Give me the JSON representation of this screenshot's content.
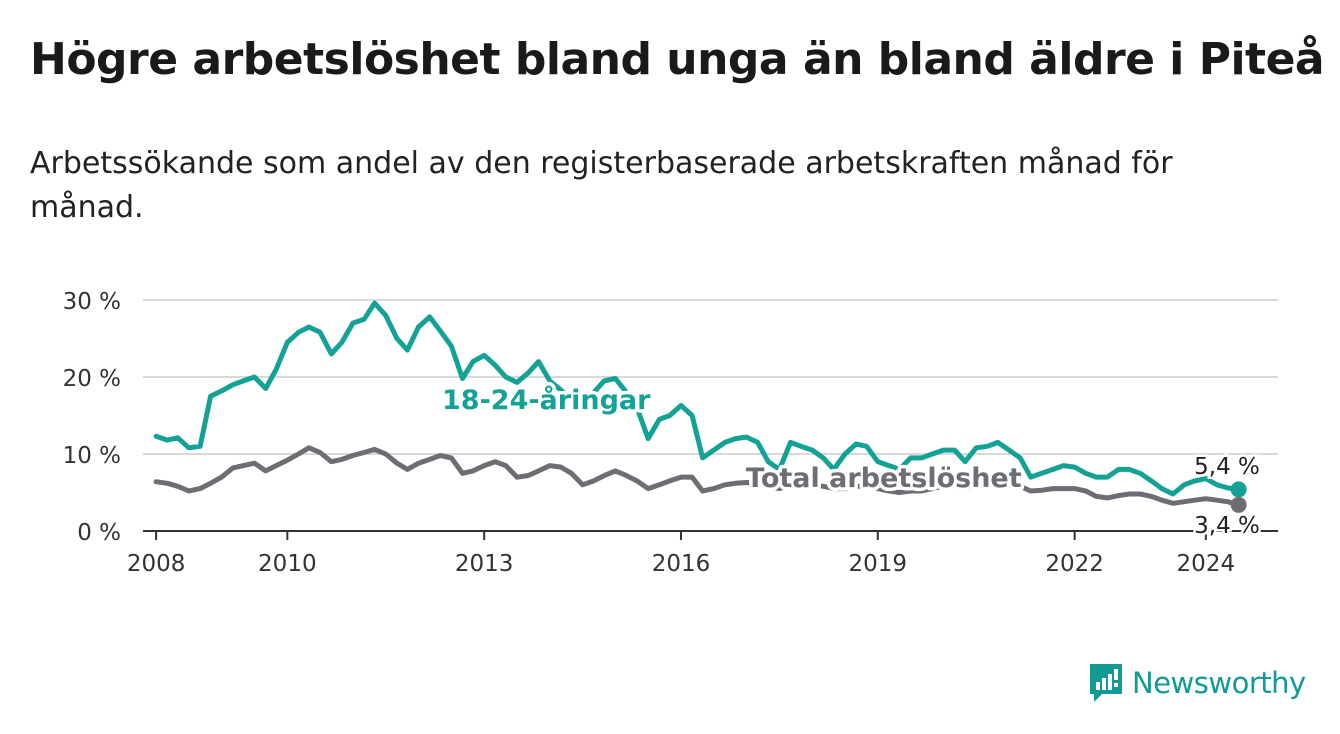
{
  "title": "Högre arbetslöshet bland unga än bland äldre i Piteå",
  "subtitle": "Arbetssökande som andel av den registerbaserade arbetskraften månad för månad.",
  "brand": "Newsworthy",
  "colors": {
    "youth": "#14a296",
    "total": "#6d6d74",
    "grid": "#d9d9d9",
    "axis": "#333333",
    "brand": "#129a94"
  },
  "chart_data": {
    "type": "line",
    "ylim": [
      0,
      30
    ],
    "xlim": [
      2007.8,
      2025.1
    ],
    "y_ticks": [
      0,
      10,
      20,
      30
    ],
    "y_tick_labels": [
      "0 %",
      "10 %",
      "20 %",
      "30 %"
    ],
    "x_ticks": [
      2008,
      2010,
      2013,
      2016,
      2019,
      2022,
      2024
    ],
    "x_tick_labels": [
      "2008",
      "2010",
      "2013",
      "2016",
      "2019",
      "2022",
      "2024"
    ],
    "grid": true,
    "series": [
      {
        "name": "18-24-åringar",
        "end_label": "5,4 %",
        "x": [
          2008.0,
          2008.17,
          2008.33,
          2008.5,
          2008.67,
          2008.83,
          2009.0,
          2009.17,
          2009.33,
          2009.5,
          2009.67,
          2009.83,
          2010.0,
          2010.17,
          2010.33,
          2010.5,
          2010.67,
          2010.83,
          2011.0,
          2011.17,
          2011.33,
          2011.5,
          2011.67,
          2011.83,
          2012.0,
          2012.17,
          2012.33,
          2012.5,
          2012.67,
          2012.83,
          2013.0,
          2013.17,
          2013.33,
          2013.5,
          2013.67,
          2013.83,
          2014.0,
          2014.17,
          2014.33,
          2014.5,
          2014.67,
          2014.83,
          2015.0,
          2015.17,
          2015.33,
          2015.5,
          2015.67,
          2015.83,
          2016.0,
          2016.17,
          2016.33,
          2016.5,
          2016.67,
          2016.83,
          2017.0,
          2017.17,
          2017.33,
          2017.5,
          2017.67,
          2017.83,
          2018.0,
          2018.17,
          2018.33,
          2018.5,
          2018.67,
          2018.83,
          2019.0,
          2019.17,
          2019.33,
          2019.5,
          2019.67,
          2019.83,
          2020.0,
          2020.17,
          2020.33,
          2020.5,
          2020.67,
          2020.83,
          2021.0,
          2021.17,
          2021.33,
          2021.5,
          2021.67,
          2021.83,
          2022.0,
          2022.17,
          2022.33,
          2022.5,
          2022.67,
          2022.83,
          2023.0,
          2023.17,
          2023.33,
          2023.5,
          2023.67,
          2023.83,
          2024.0,
          2024.17,
          2024.33,
          2024.5
        ],
        "values": [
          12.3,
          11.8,
          12.1,
          10.8,
          11.0,
          17.5,
          18.2,
          19.0,
          19.5,
          20.0,
          18.5,
          21.0,
          24.5,
          25.8,
          26.5,
          25.8,
          23.0,
          24.5,
          27.0,
          27.5,
          29.6,
          28.0,
          25.0,
          23.5,
          26.5,
          27.8,
          26.0,
          24.0,
          19.8,
          22.0,
          22.8,
          21.5,
          20.0,
          19.3,
          20.5,
          22.0,
          19.5,
          18.3,
          17.0,
          16.0,
          18.0,
          19.5,
          19.8,
          18.0,
          16.0,
          12.0,
          14.5,
          15.0,
          16.3,
          15.0,
          9.5,
          10.5,
          11.5,
          12.0,
          12.2,
          11.5,
          9.0,
          8.0,
          11.5,
          11.0,
          10.5,
          9.5,
          8.0,
          10.0,
          11.3,
          11.0,
          9.0,
          8.5,
          8.0,
          9.5,
          9.5,
          10.0,
          10.5,
          10.5,
          9.0,
          10.8,
          11.0,
          11.5,
          10.5,
          9.5,
          7.0,
          7.5,
          8.0,
          8.5,
          8.3,
          7.5,
          7.0,
          7.0,
          8.0,
          8.0,
          7.5,
          6.5,
          5.5,
          4.8,
          6.0,
          6.5,
          6.8,
          6.0,
          5.6,
          5.4
        ],
        "color": "#14a296"
      },
      {
        "name": "Total arbetslöshet",
        "end_label": "3,4 %",
        "x": [
          2008.0,
          2008.17,
          2008.33,
          2008.5,
          2008.67,
          2008.83,
          2009.0,
          2009.17,
          2009.33,
          2009.5,
          2009.67,
          2009.83,
          2010.0,
          2010.17,
          2010.33,
          2010.5,
          2010.67,
          2010.83,
          2011.0,
          2011.17,
          2011.33,
          2011.5,
          2011.67,
          2011.83,
          2012.0,
          2012.17,
          2012.33,
          2012.5,
          2012.67,
          2012.83,
          2013.0,
          2013.17,
          2013.33,
          2013.5,
          2013.67,
          2013.83,
          2014.0,
          2014.17,
          2014.33,
          2014.5,
          2014.67,
          2014.83,
          2015.0,
          2015.17,
          2015.33,
          2015.5,
          2015.67,
          2015.83,
          2016.0,
          2016.17,
          2016.33,
          2016.5,
          2016.67,
          2016.83,
          2017.0,
          2017.17,
          2017.33,
          2017.5,
          2017.67,
          2017.83,
          2018.0,
          2018.17,
          2018.33,
          2018.5,
          2018.67,
          2018.83,
          2019.0,
          2019.17,
          2019.33,
          2019.5,
          2019.67,
          2019.83,
          2020.0,
          2020.17,
          2020.33,
          2020.5,
          2020.67,
          2020.83,
          2021.0,
          2021.17,
          2021.33,
          2021.5,
          2021.67,
          2021.83,
          2022.0,
          2022.17,
          2022.33,
          2022.5,
          2022.67,
          2022.83,
          2023.0,
          2023.17,
          2023.33,
          2023.5,
          2023.67,
          2023.83,
          2024.0,
          2024.17,
          2024.33,
          2024.5
        ],
        "values": [
          6.4,
          6.2,
          5.8,
          5.2,
          5.5,
          6.2,
          7.0,
          8.2,
          8.5,
          8.8,
          7.8,
          8.5,
          9.2,
          10.0,
          10.8,
          10.2,
          9.0,
          9.3,
          9.8,
          10.2,
          10.6,
          10.0,
          8.8,
          8.0,
          8.8,
          9.3,
          9.8,
          9.5,
          7.5,
          7.8,
          8.5,
          9.0,
          8.5,
          7.0,
          7.2,
          7.8,
          8.5,
          8.3,
          7.5,
          6.0,
          6.5,
          7.2,
          7.8,
          7.2,
          6.5,
          5.5,
          6.0,
          6.5,
          7.0,
          7.0,
          5.2,
          5.5,
          6.0,
          6.2,
          6.3,
          6.2,
          5.8,
          5.5,
          6.0,
          6.0,
          6.0,
          5.8,
          5.5,
          5.5,
          5.8,
          5.8,
          5.5,
          5.2,
          5.0,
          5.2,
          5.2,
          5.5,
          5.8,
          5.8,
          5.5,
          6.0,
          6.0,
          6.2,
          6.0,
          5.8,
          5.2,
          5.3,
          5.5,
          5.5,
          5.5,
          5.2,
          4.5,
          4.3,
          4.6,
          4.8,
          4.8,
          4.5,
          4.0,
          3.6,
          3.8,
          4.0,
          4.2,
          4.0,
          3.8,
          3.4
        ],
        "color": "#6d6d74"
      }
    ]
  }
}
